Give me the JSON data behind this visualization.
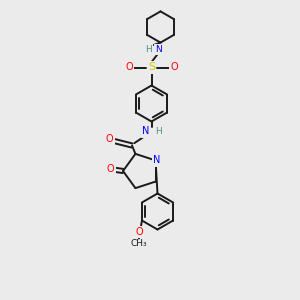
{
  "background_color": "#ebebeb",
  "bond_color": "#1a1a1a",
  "bond_width": 1.4,
  "atom_colors": {
    "N": "#0000ff",
    "O": "#ff0000",
    "S": "#cccc00",
    "C": "#1a1a1a",
    "H": "#4a9090"
  },
  "font_size": 7.0,
  "fig_width": 3.0,
  "fig_height": 3.0,
  "dpi": 100,
  "xlim": [
    0,
    10
  ],
  "ylim": [
    0,
    10
  ]
}
